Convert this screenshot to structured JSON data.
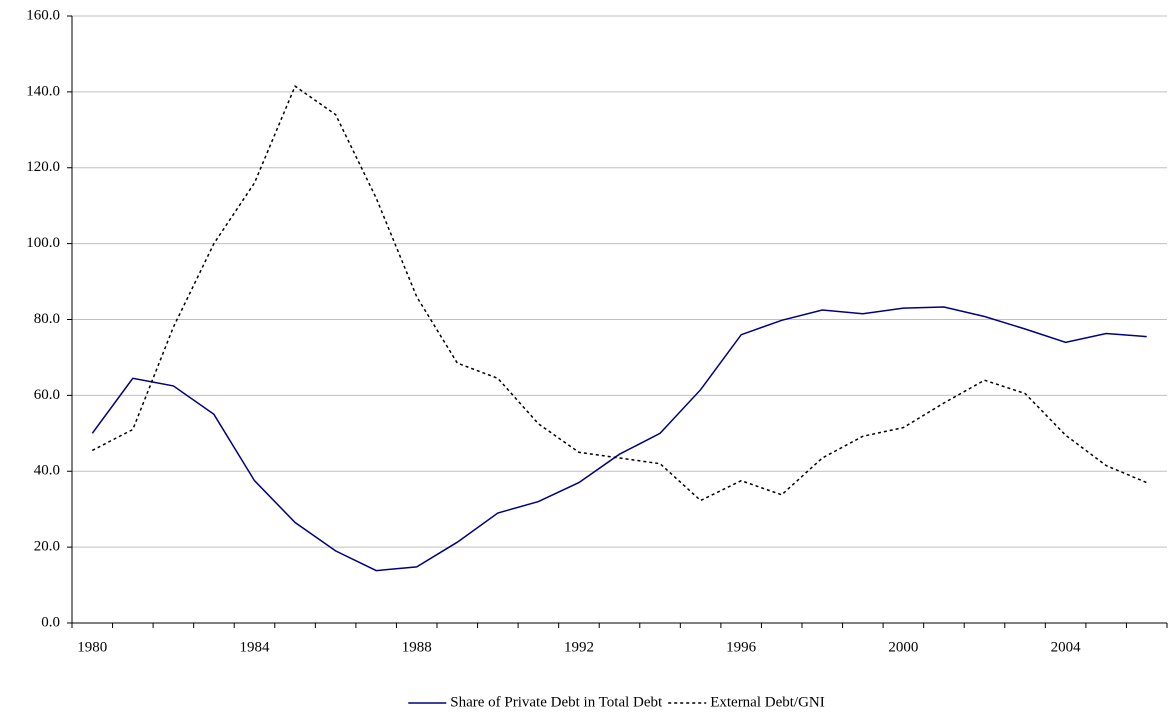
{
  "chart_data": {
    "type": "line",
    "categories": [
      "1980",
      null,
      null,
      null,
      "1984",
      null,
      null,
      null,
      "1988",
      null,
      null,
      null,
      "1992",
      null,
      null,
      null,
      "1996",
      null,
      null,
      null,
      "2000",
      null,
      null,
      null,
      "2004",
      null,
      null
    ],
    "series": [
      {
        "name": "Share of Private Debt in Total Debt",
        "color": "#000080",
        "dash": "solid",
        "values": [
          50,
          64.5,
          62.5,
          55,
          37.5,
          26.5,
          19,
          13.8,
          14.8,
          21.3,
          29,
          32,
          37,
          44.5,
          50,
          61.5,
          76,
          79.8,
          82.5,
          81.5,
          83,
          83.3,
          80.8,
          77.5,
          74,
          76.3,
          75.5
        ]
      },
      {
        "name": "External Debt/GNI",
        "color": "#000000",
        "dash": "dotted",
        "values": [
          45.5,
          51,
          78,
          100,
          116,
          141.5,
          134,
          112,
          86,
          68.5,
          64.5,
          52.5,
          45,
          43.5,
          42,
          32.3,
          37.5,
          33.8,
          43.5,
          49.2,
          51.5,
          58,
          64,
          60.5,
          49.5,
          41.5,
          37
        ]
      }
    ],
    "ylim": [
      0,
      160
    ],
    "yticks": [
      {
        "value": 0,
        "label": "0.0"
      },
      {
        "value": 20,
        "label": "20.0"
      },
      {
        "value": 40,
        "label": "40.0"
      },
      {
        "value": 60,
        "label": "60.0"
      },
      {
        "value": 80,
        "label": "80.0"
      },
      {
        "value": 100,
        "label": "100.0"
      },
      {
        "value": 120,
        "label": "120.0"
      },
      {
        "value": 140,
        "label": "140.0"
      },
      {
        "value": 160,
        "label": "160.0"
      }
    ],
    "grid": true,
    "legend": "bottom"
  }
}
